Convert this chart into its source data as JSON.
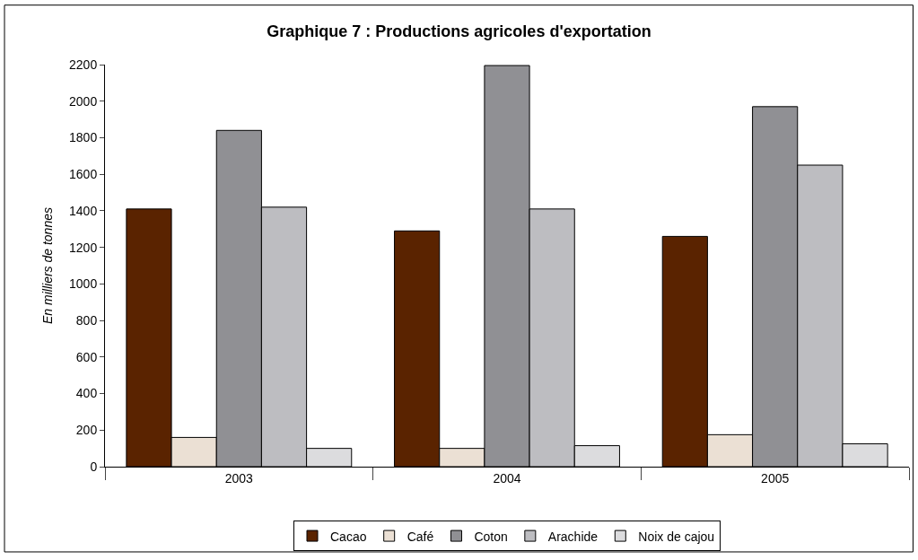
{
  "chart_data": {
    "type": "bar",
    "title": "Graphique 7 : Productions agricoles d'exportation",
    "ylabel": "En milliers de tonnes",
    "categories": [
      "2003",
      "2004",
      "2005"
    ],
    "series": [
      {
        "name": "Cacao",
        "color": "#5a2300",
        "values": [
          1410,
          1290,
          1260
        ]
      },
      {
        "name": "Café",
        "color": "#ebe0d4",
        "values": [
          160,
          100,
          175
        ]
      },
      {
        "name": "Coton",
        "color": "#909094",
        "values": [
          1840,
          2195,
          1970
        ]
      },
      {
        "name": "Arachide",
        "color": "#bdbdc1",
        "values": [
          1420,
          1410,
          1650
        ]
      },
      {
        "name": "Noix de cajou",
        "color": "#dcdcde",
        "values": [
          100,
          115,
          125
        ]
      }
    ],
    "ylim": [
      0,
      2200
    ],
    "yticks": [
      0,
      200,
      400,
      600,
      800,
      1000,
      1200,
      1400,
      1600,
      1800,
      2000,
      2200
    ],
    "legend": "bottom"
  }
}
